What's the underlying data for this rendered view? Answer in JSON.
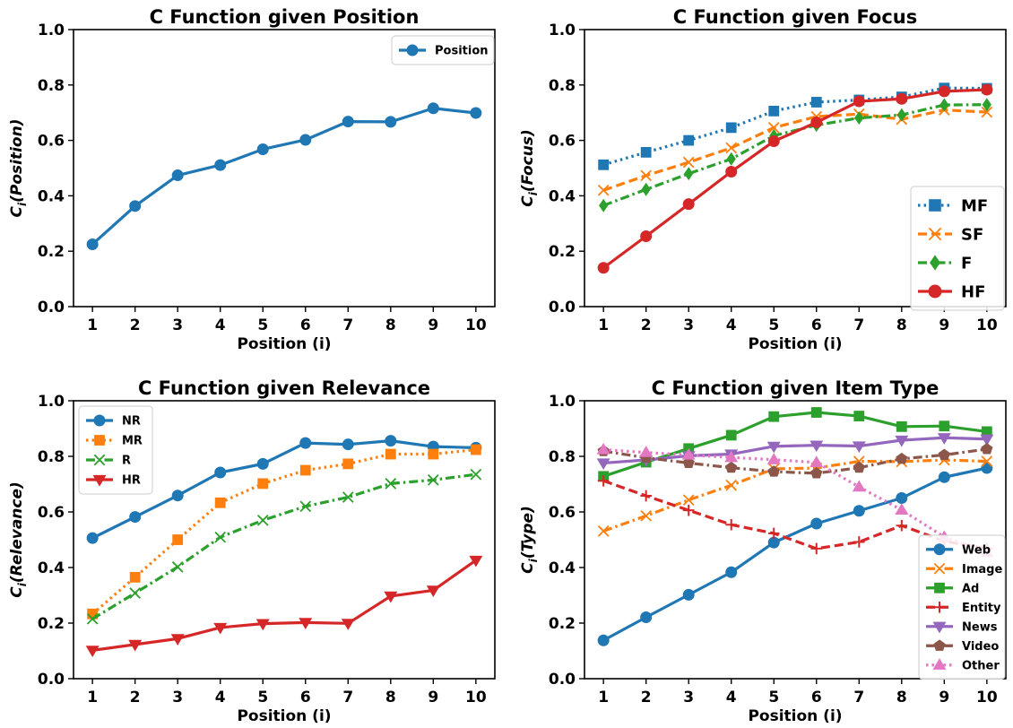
{
  "chart_data": [
    {
      "type": "line",
      "title": "C Function given Position",
      "xlabel": "Position (i)",
      "ylabel_main": "C",
      "ylabel_sub": "i",
      "ylabel_arg": "(Position)",
      "x": [
        1,
        2,
        3,
        4,
        5,
        6,
        7,
        8,
        9,
        10
      ],
      "xticks": [
        "1",
        "2",
        "3",
        "4",
        "5",
        "6",
        "7",
        "8",
        "9",
        "10"
      ],
      "ylim": [
        0,
        1.0
      ],
      "yticks": [
        "0.0",
        "0.2",
        "0.4",
        "0.6",
        "0.8",
        "1.0"
      ],
      "legend_position": "top-right",
      "series": [
        {
          "name": "Position",
          "color": "#1f77b4",
          "marker": "circle",
          "dash": "solid",
          "values": [
            0.225,
            0.363,
            0.474,
            0.511,
            0.568,
            0.602,
            0.668,
            0.667,
            0.716,
            0.699
          ]
        }
      ]
    },
    {
      "type": "line",
      "title": "C Function given Focus",
      "xlabel": "Position (i)",
      "ylabel_main": "C",
      "ylabel_sub": "i",
      "ylabel_arg": "(Focus)",
      "x": [
        1,
        2,
        3,
        4,
        5,
        6,
        7,
        8,
        9,
        10
      ],
      "xticks": [
        "1",
        "2",
        "3",
        "4",
        "5",
        "6",
        "7",
        "8",
        "9",
        "10"
      ],
      "ylim": [
        0,
        1.0
      ],
      "yticks": [
        "0.0",
        "0.2",
        "0.4",
        "0.6",
        "0.8",
        "1.0"
      ],
      "legend_position": "bottom-right",
      "series": [
        {
          "name": "MF",
          "color": "#1f77b4",
          "marker": "square",
          "dash": "dotted",
          "values": [
            0.512,
            0.557,
            0.6,
            0.646,
            0.706,
            0.738,
            0.746,
            0.757,
            0.789,
            0.788
          ]
        },
        {
          "name": "SF",
          "color": "#ff7f0e",
          "marker": "x",
          "dash": "dashed",
          "values": [
            0.42,
            0.473,
            0.521,
            0.573,
            0.646,
            0.686,
            0.695,
            0.676,
            0.71,
            0.702
          ]
        },
        {
          "name": "F",
          "color": "#2ca02c",
          "marker": "diamond",
          "dash": "dashdot",
          "values": [
            0.365,
            0.423,
            0.48,
            0.533,
            0.617,
            0.655,
            0.681,
            0.692,
            0.728,
            0.729
          ]
        },
        {
          "name": "HF",
          "color": "#d62728",
          "marker": "circle",
          "dash": "solid",
          "values": [
            0.14,
            0.254,
            0.37,
            0.487,
            0.597,
            0.665,
            0.741,
            0.75,
            0.777,
            0.783
          ]
        }
      ]
    },
    {
      "type": "line",
      "title": "C Function given Relevance",
      "xlabel": "Position (i)",
      "ylabel_main": "C",
      "ylabel_sub": "i",
      "ylabel_arg": "(Relevance)",
      "x": [
        1,
        2,
        3,
        4,
        5,
        6,
        7,
        8,
        9,
        10
      ],
      "xticks": [
        "1",
        "2",
        "3",
        "4",
        "5",
        "6",
        "7",
        "8",
        "9",
        "10"
      ],
      "ylim": [
        0,
        1.0
      ],
      "yticks": [
        "0.0",
        "0.2",
        "0.4",
        "0.6",
        "0.8",
        "1.0"
      ],
      "legend_position": "top-left",
      "series": [
        {
          "name": "NR",
          "color": "#1f77b4",
          "marker": "circle",
          "dash": "solid",
          "values": [
            0.506,
            0.582,
            0.659,
            0.742,
            0.773,
            0.848,
            0.843,
            0.856,
            0.835,
            0.831
          ]
        },
        {
          "name": "MR",
          "color": "#ff7f0e",
          "marker": "square",
          "dash": "dotted",
          "values": [
            0.233,
            0.365,
            0.5,
            0.633,
            0.702,
            0.75,
            0.773,
            0.808,
            0.808,
            0.824
          ]
        },
        {
          "name": "R",
          "color": "#2ca02c",
          "marker": "x",
          "dash": "dashdot",
          "values": [
            0.215,
            0.308,
            0.402,
            0.509,
            0.57,
            0.62,
            0.653,
            0.702,
            0.715,
            0.735
          ]
        },
        {
          "name": "HR",
          "color": "#d62728",
          "marker": "triangle-down",
          "dash": "solid",
          "values": [
            0.102,
            0.123,
            0.144,
            0.184,
            0.198,
            0.202,
            0.199,
            0.297,
            0.318,
            0.426
          ]
        }
      ]
    },
    {
      "type": "line",
      "title": "C Function given Item Type",
      "xlabel": "Position (i)",
      "ylabel_main": "C",
      "ylabel_sub": "i",
      "ylabel_arg": "(Type)",
      "x": [
        1,
        2,
        3,
        4,
        5,
        6,
        7,
        8,
        9,
        10
      ],
      "xticks": [
        "1",
        "2",
        "3",
        "4",
        "5",
        "6",
        "7",
        "8",
        "9",
        "10"
      ],
      "ylim": [
        0,
        1.0
      ],
      "yticks": [
        "0.0",
        "0.2",
        "0.4",
        "0.6",
        "0.8",
        "1.0"
      ],
      "legend_position": "bottom-right",
      "series": [
        {
          "name": "Web",
          "color": "#1f77b4",
          "marker": "circle",
          "dash": "solid",
          "values": [
            0.138,
            0.221,
            0.302,
            0.383,
            0.49,
            0.558,
            0.604,
            0.65,
            0.725,
            0.758
          ]
        },
        {
          "name": "Image",
          "color": "#ff7f0e",
          "marker": "x",
          "dash": "dashdot",
          "values": [
            0.531,
            0.586,
            0.643,
            0.696,
            0.755,
            0.758,
            0.782,
            0.781,
            0.787,
            0.782
          ]
        },
        {
          "name": "Ad",
          "color": "#2ca02c",
          "marker": "square",
          "dash": "solid",
          "values": [
            0.728,
            0.779,
            0.828,
            0.876,
            0.943,
            0.958,
            0.945,
            0.907,
            0.909,
            0.889
          ]
        },
        {
          "name": "Entity",
          "color": "#d62728",
          "marker": "plus",
          "dash": "dashed",
          "values": [
            0.712,
            0.658,
            0.606,
            0.554,
            0.523,
            0.468,
            0.492,
            0.551,
            0.495,
            0.468
          ]
        },
        {
          "name": "News",
          "color": "#9467bd",
          "marker": "triangle-down",
          "dash": "solid",
          "values": [
            0.776,
            0.787,
            0.802,
            0.808,
            0.836,
            0.84,
            0.837,
            0.858,
            0.867,
            0.862
          ]
        },
        {
          "name": "Video",
          "color": "#8c564b",
          "marker": "pentagon",
          "dash": "dashdot",
          "values": [
            0.819,
            0.795,
            0.776,
            0.759,
            0.745,
            0.739,
            0.759,
            0.791,
            0.805,
            0.826
          ]
        },
        {
          "name": "Other",
          "color": "#e377c2",
          "marker": "triangle-up",
          "dash": "dotted",
          "values": [
            0.824,
            0.814,
            0.805,
            0.796,
            0.788,
            0.778,
            0.69,
            0.607,
            0.51,
            0.455
          ]
        }
      ]
    }
  ]
}
